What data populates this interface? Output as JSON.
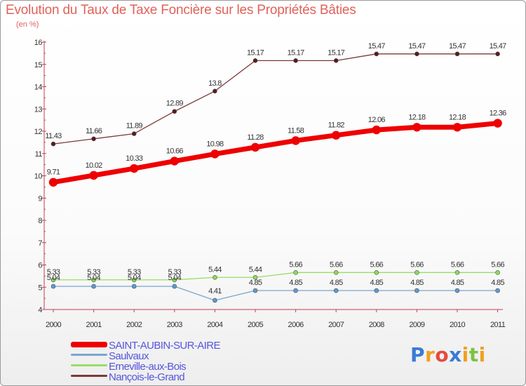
{
  "chart_data": {
    "type": "line",
    "title": "Evolution du Taux de Taxe Foncière sur les Propriétés Bâties",
    "unit_label": "(en %)",
    "x": [
      "2000",
      "2001",
      "2002",
      "2003",
      "2004",
      "2005",
      "2006",
      "2007",
      "2008",
      "2009",
      "2010",
      "2011"
    ],
    "ylim": [
      4,
      16
    ],
    "yticks": [
      "4",
      "5",
      "6",
      "7",
      "8",
      "9",
      "10",
      "11",
      "12",
      "13",
      "14",
      "15",
      "16"
    ],
    "grid": false,
    "series": [
      {
        "name": "Nançois-le-Grand",
        "color": "#7b3a3a",
        "values": [
          11.43,
          11.66,
          11.89,
          12.89,
          13.8,
          15.17,
          15.17,
          15.17,
          15.47,
          15.47,
          15.47,
          15.47
        ],
        "labels": [
          "11.43",
          "11.66",
          "11.89",
          "12.89",
          "13.8",
          "15.17",
          "15.17",
          "15.17",
          "15.47",
          "15.47",
          "15.47",
          "15.47"
        ]
      },
      {
        "name": "SAINT-AUBIN-SUR-AIRE",
        "color": "#ee0000",
        "values": [
          9.71,
          10.02,
          10.33,
          10.66,
          10.98,
          11.28,
          11.58,
          11.82,
          12.06,
          12.18,
          12.18,
          12.36
        ],
        "labels": [
          "9.71",
          "10.02",
          "10.33",
          "10.66",
          "10.98",
          "11.28",
          "11.58",
          "11.82",
          "12.06",
          "12.18",
          "12.18",
          "12.36"
        ]
      },
      {
        "name": "Erneville-aux-Bois",
        "color": "#99dd66",
        "values": [
          5.33,
          5.33,
          5.33,
          5.33,
          5.44,
          5.44,
          5.66,
          5.66,
          5.66,
          5.66,
          5.66,
          5.66
        ],
        "labels": [
          "5.33",
          "5.33",
          "5.33",
          "5.33",
          "5.44",
          "5.44",
          "5.66",
          "5.66",
          "5.66",
          "5.66",
          "5.66",
          "5.66"
        ]
      },
      {
        "name": "Saulvaux",
        "color": "#7aa6cc",
        "values": [
          5.04,
          5.04,
          5.04,
          5.04,
          4.41,
          4.85,
          4.85,
          4.85,
          4.85,
          4.85,
          4.85,
          4.85
        ],
        "labels": [
          "5.04",
          "5.04",
          "5.04",
          "5.04",
          "4.41",
          "4.85",
          "4.85",
          "4.85",
          "4.85",
          "4.85",
          "4.85",
          "4.85"
        ]
      }
    ],
    "legend_position": "bottom-left",
    "legend": [
      {
        "name": "SAINT-AUBIN-SUR-AIRE",
        "color": "#ee0000"
      },
      {
        "name": "Saulvaux",
        "color": "#7aa6cc"
      },
      {
        "name": "Erneville-aux-Bois",
        "color": "#99dd66"
      },
      {
        "name": "Nançois-le-Grand",
        "color": "#7b3a3a"
      }
    ]
  },
  "logo": {
    "text": "Proxiti",
    "letters": [
      {
        "ch": "P",
        "color": "#3a7bd5"
      },
      {
        "ch": "r",
        "color": "#f0a020"
      },
      {
        "ch": "o",
        "color": "#e64a3c"
      },
      {
        "ch": "x",
        "color": "#3a7bd5"
      },
      {
        "ch": "i",
        "color": "#f0a020"
      },
      {
        "ch": "t",
        "color": "#7cc242"
      },
      {
        "ch": "i",
        "color": "#f0a020"
      }
    ]
  }
}
